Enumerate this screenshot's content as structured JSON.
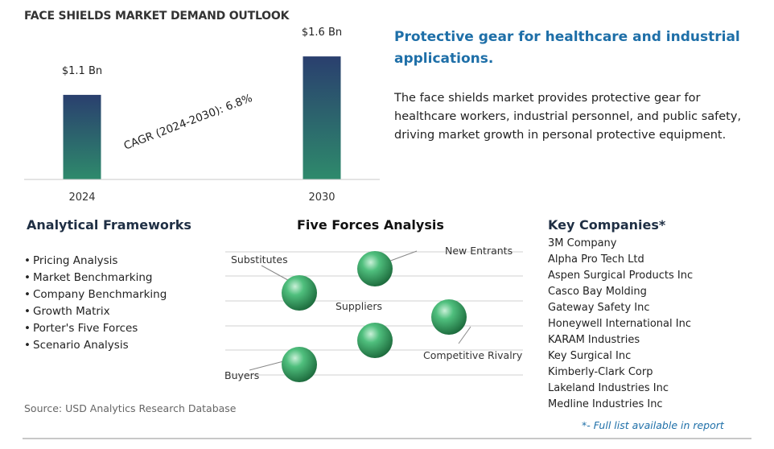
{
  "chart_data": {
    "type": "bar",
    "title": "FACE SHIELDS MARKET DEMAND OUTLOOK",
    "categories": [
      "2024",
      "2030"
    ],
    "values": [
      1.1,
      1.6
    ],
    "value_labels": [
      "$1.1 Bn",
      "$1.6 Bn"
    ],
    "annotation": "CAGR (2024-2030):  6.8%",
    "ylim": [
      0,
      1.8
    ],
    "grid": false,
    "colors": {
      "bar_top": "#2a3f6e",
      "bar_bottom": "#2e8a6c"
    }
  },
  "headline": "Protective gear for healthcare and industrial applications.",
  "description": "The face shields market provides protective gear for healthcare workers, industrial personnel, and public safety, driving market growth in personal protective equipment.",
  "frameworks": {
    "title": "Analytical Frameworks",
    "items": [
      "Pricing Analysis",
      "Market Benchmarking",
      "Company Benchmarking",
      "Growth Matrix",
      "Porter's Five Forces",
      "Scenario Analysis"
    ]
  },
  "five_forces": {
    "title": "Five Forces Analysis",
    "labels": {
      "substitutes": "Substitutes",
      "new_entrants": "New Entrants",
      "suppliers": "Suppliers",
      "competitive_rivalry": "Competitive Rivalry",
      "buyers": "Buyers"
    },
    "sphere_color": "#2f9b5a"
  },
  "companies": {
    "title": "Key Companies*",
    "items": [
      "3M Company",
      "Alpha Pro Tech Ltd",
      "Aspen Surgical Products Inc",
      "Casco Bay Molding",
      "Gateway Safety Inc",
      "Honeywell International Inc",
      "KARAM Industries",
      "Key Surgical Inc",
      "Kimberly-Clark Corp",
      "Lakeland Industries Inc",
      "Medline Industries Inc"
    ],
    "footnote": "*- Full list available in report"
  },
  "source": "Source: USD Analytics Research Database"
}
